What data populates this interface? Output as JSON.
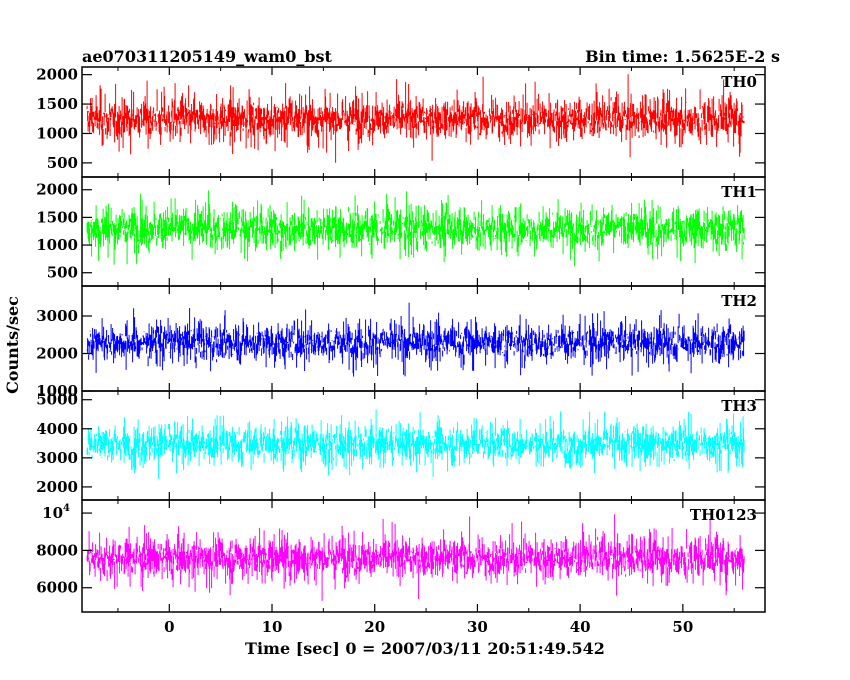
{
  "chart_data": {
    "type": "line",
    "title": "ae070311205149_wam0_bst",
    "subtitle": "Bin time: 1.5625E-2 s",
    "xlabel": "Time [sec] 0 = 2007/03/11 20:51:49.542",
    "ylabel": "Counts/sec",
    "xlim": [
      -8.5,
      58
    ],
    "x_ticks": [
      0,
      10,
      20,
      30,
      40,
      50
    ],
    "data_x_range": [
      -8.0,
      56.0
    ],
    "grid": false,
    "legend": "none",
    "panels": [
      {
        "name": "TH0",
        "color": "#ff0000",
        "ylim": [
          260,
          2130
        ],
        "y_ticks": [
          {
            "value": 500,
            "label": "500"
          },
          {
            "value": 1000,
            "label": "1000"
          },
          {
            "value": 1500,
            "label": "1500"
          },
          {
            "value": 2000,
            "label": "2000"
          }
        ],
        "series_summary": {
          "mean": 1250,
          "typical_min": 350,
          "typical_max": 2000
        }
      },
      {
        "name": "TH1",
        "color": "#00ff00",
        "ylim": [
          260,
          2230
        ],
        "y_ticks": [
          {
            "value": 500,
            "label": "500"
          },
          {
            "value": 1000,
            "label": "1000"
          },
          {
            "value": 1500,
            "label": "1500"
          },
          {
            "value": 2000,
            "label": "2000"
          }
        ],
        "series_summary": {
          "mean": 1300,
          "typical_min": 350,
          "typical_max": 2100
        }
      },
      {
        "name": "TH2",
        "color": "#0000ff",
        "ylim": [
          1000,
          3800
        ],
        "y_ticks": [
          {
            "value": 1000,
            "label": "1000"
          },
          {
            "value": 2000,
            "label": "2000"
          },
          {
            "value": 3000,
            "label": "3000"
          }
        ],
        "series_summary": {
          "mean": 2300,
          "typical_min": 1150,
          "typical_max": 3500
        }
      },
      {
        "name": "TH3",
        "color": "#00ffff",
        "ylim": [
          1550,
          5300
        ],
        "y_ticks": [
          {
            "value": 2000,
            "label": "2000"
          },
          {
            "value": 3000,
            "label": "3000"
          },
          {
            "value": 4000,
            "label": "4000"
          },
          {
            "value": 5000,
            "label": "5000"
          }
        ],
        "series_summary": {
          "mean": 3500,
          "typical_min": 2000,
          "typical_max": 5000
        }
      },
      {
        "name": "TH0123",
        "color": "#ff00ff",
        "ylim": [
          4700,
          10700
        ],
        "y_ticks": [
          {
            "value": 6000,
            "label": "6000"
          },
          {
            "value": 8000,
            "label": "8000"
          },
          {
            "value": 10000,
            "label": "10",
            "exp": "4"
          }
        ],
        "series_summary": {
          "mean": 7600,
          "typical_min": 5200,
          "typical_max": 10300
        }
      }
    ]
  }
}
